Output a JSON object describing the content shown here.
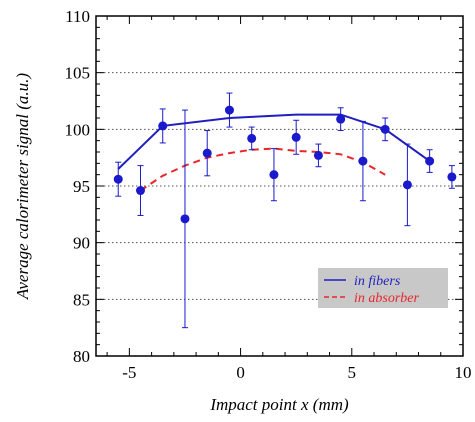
{
  "chart_data": {
    "type": "scatter",
    "title": "",
    "xlabel": "Impact point x (mm)",
    "ylabel": "Average calorimeter signal (a.u.)",
    "xlim": [
      -6.5,
      10
    ],
    "ylim": [
      80,
      110
    ],
    "x_ticks": [
      -5,
      0,
      5,
      10
    ],
    "x_tick_labels": [
      "-5",
      "0",
      "5",
      "10"
    ],
    "y_ticks": [
      80,
      85,
      90,
      95,
      100,
      105,
      110
    ],
    "y_tick_labels": [
      "80",
      "85",
      "90",
      "95",
      "100",
      "105",
      "110"
    ],
    "grid": "horizontal dotted",
    "legend_position": "bottom-right",
    "legend": [
      {
        "label": "in fibers",
        "color": "#1f1fbf",
        "style": "solid"
      },
      {
        "label": "in absorber",
        "color": "#e8262b",
        "style": "dashed"
      }
    ],
    "points": {
      "color": "#1a1acc",
      "x": [
        -5.5,
        -4.5,
        -3.5,
        -2.5,
        -1.5,
        -0.5,
        0.5,
        1.5,
        2.5,
        3.5,
        4.5,
        5.5,
        6.5,
        7.5,
        8.5,
        9.5
      ],
      "y": [
        95.6,
        94.6,
        100.3,
        92.1,
        97.9,
        101.7,
        99.2,
        96.0,
        99.3,
        97.7,
        100.9,
        97.2,
        100.0,
        95.1,
        97.2,
        95.8
      ],
      "err": [
        1.5,
        2.2,
        1.5,
        9.6,
        2.0,
        1.5,
        1.0,
        2.3,
        1.5,
        1.0,
        1.0,
        3.5,
        1.0,
        3.6,
        1.0,
        1.0
      ]
    },
    "series": [
      {
        "name": "in fibers",
        "color": "#1f1fbf",
        "style": "solid",
        "x": [
          -5.5,
          -3.5,
          -0.5,
          0.5,
          1.5,
          2.5,
          3.5,
          4.5,
          6.5,
          8.5
        ],
        "y": [
          96.5,
          100.3,
          101.0,
          101.1,
          101.2,
          101.3,
          101.3,
          101.3,
          100.0,
          97.2
        ]
      },
      {
        "name": "in absorber",
        "color": "#e8262b",
        "style": "dashed",
        "x": [
          -4.5,
          -3.5,
          -2.5,
          -1.5,
          -0.5,
          0.5,
          1.5,
          2.5,
          3.5,
          4.5,
          5.5,
          6.5
        ],
        "y": [
          94.6,
          95.9,
          96.8,
          97.5,
          97.9,
          98.2,
          98.3,
          98.1,
          98.0,
          97.8,
          97.1,
          96.0
        ]
      }
    ]
  }
}
